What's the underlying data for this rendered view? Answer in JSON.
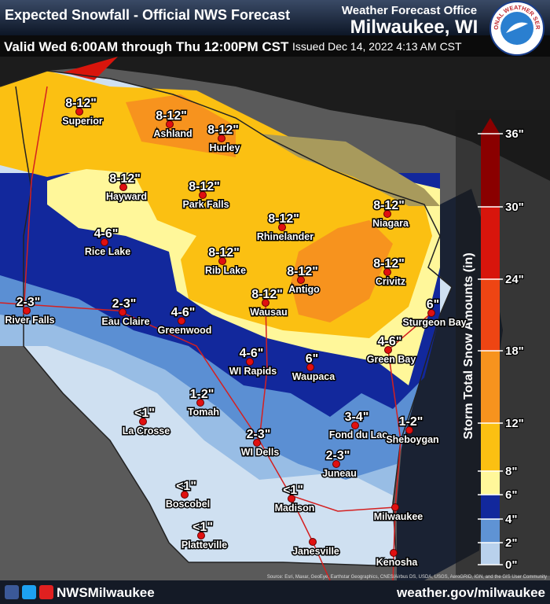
{
  "header": {
    "title": "Expected Snowfall - Official NWS Forecast",
    "office_label": "Weather Forecast Office",
    "office": "Milwaukee, WI",
    "valid": "Valid Wed 6:00AM through Thu 12:00PM CST",
    "issued": "Issued Dec 14, 2022 4:13 AM CST"
  },
  "logo": {
    "text": "NATIONAL WEATHER SERVICE"
  },
  "cities": [
    {
      "name": "Superior",
      "amount": "8-12\""
    },
    {
      "name": "Ashland",
      "amount": "8-12\""
    },
    {
      "name": "Hurley",
      "amount": "8-12\""
    },
    {
      "name": "Hayward",
      "amount": "8-12\""
    },
    {
      "name": "Park Falls",
      "amount": "8-12\""
    },
    {
      "name": "Rhinelander",
      "amount": "8-12\""
    },
    {
      "name": "Niagara",
      "amount": "8-12\""
    },
    {
      "name": "Rice Lake",
      "amount": "4-6\""
    },
    {
      "name": "Rib Lake",
      "amount": "8-12\""
    },
    {
      "name": "Antigo",
      "amount": "8-12\""
    },
    {
      "name": "Crivitz",
      "amount": "8-12\""
    },
    {
      "name": "Sturgeon Bay",
      "amount": "6\""
    },
    {
      "name": "River Falls",
      "amount": "2-3\""
    },
    {
      "name": "Eau Claire",
      "amount": "2-3\""
    },
    {
      "name": "Greenwood",
      "amount": "4-6\""
    },
    {
      "name": "Wausau",
      "amount": "8-12\""
    },
    {
      "name": "WI Rapids",
      "amount": "4-6\""
    },
    {
      "name": "Waupaca",
      "amount": "6\""
    },
    {
      "name": "Green Bay",
      "amount": "4-6\""
    },
    {
      "name": "Tomah",
      "amount": "1-2\""
    },
    {
      "name": "La Crosse",
      "amount": "<1\""
    },
    {
      "name": "Fond du Lac",
      "amount": "3-4\""
    },
    {
      "name": "Sheboygan",
      "amount": "1-2\""
    },
    {
      "name": "WI Dells",
      "amount": "2-3\""
    },
    {
      "name": "Juneau",
      "amount": "2-3\""
    },
    {
      "name": "Boscobel",
      "amount": "<1\""
    },
    {
      "name": "Madison",
      "amount": "<1\""
    },
    {
      "name": "Milwaukee"
    },
    {
      "name": "Platteville",
      "amount": "<1\""
    },
    {
      "name": "Janesville"
    },
    {
      "name": "Kenosha"
    }
  ],
  "legend": {
    "title": "Storm Total Snow Amounts (in)",
    "ticks": [
      "0\"",
      "2\"",
      "4\"",
      "6\"",
      "8\"",
      "12\"",
      "18\"",
      "24\"",
      "30\"",
      "36\""
    ],
    "colors": [
      "#b9d1ec",
      "#5f93d4",
      "#12289c",
      "#fff79a",
      "#fbc012",
      "#f7931e",
      "#ee4513",
      "#d8150c",
      "#8a0000"
    ]
  },
  "footer": {
    "attribution": "Source: Esri, Maxar, GeoEye, Earthstar Geographics, CNES/Airbus DS, USDA, USGS, AeroGRID, IGN, and the GIS User Community",
    "social": "NWSMilwaukee",
    "url": "weather.gov/milwaukee"
  }
}
